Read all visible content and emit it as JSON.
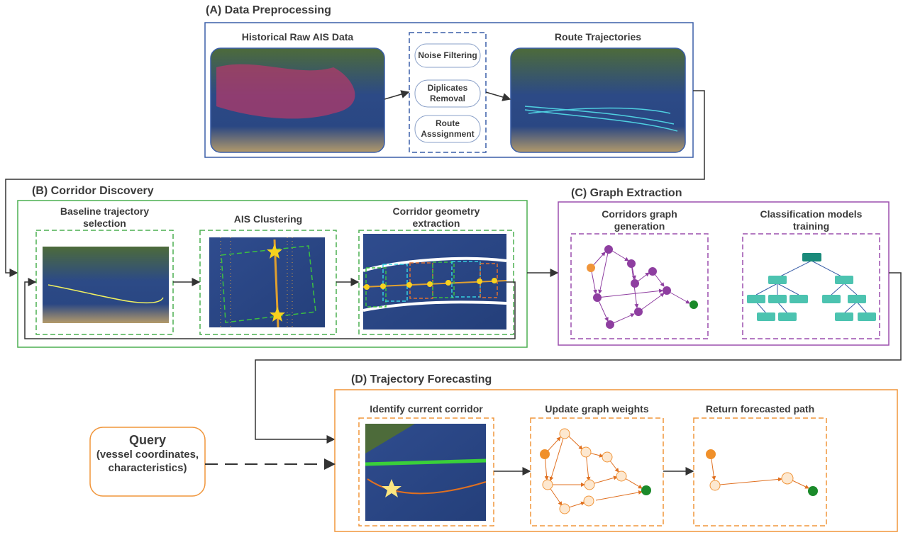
{
  "sections": {
    "a": {
      "title": "(A) Data Preprocessing",
      "panels": [
        "Historical Raw AIS Data",
        "Route Trajectories"
      ],
      "steps": [
        "Noise Filtering",
        "Diplicates Removal",
        "Route Asssignment"
      ]
    },
    "b": {
      "title": "(B) Corridor Discovery",
      "panels": [
        "Baseline trajectory selection",
        "AIS Clustering",
        "Corridor geometry extraction"
      ]
    },
    "c": {
      "title": "(C) Graph Extraction",
      "panels": [
        "Corridors graph generation",
        "Classification models training"
      ]
    },
    "d": {
      "title": "(D) Trajectory Forecasting",
      "panels": [
        "Identify current corridor",
        "Update graph weights",
        "Return forecasted path"
      ]
    }
  },
  "query": {
    "title": "Query",
    "detail": "(vessel coordinates, characteristics)"
  }
}
